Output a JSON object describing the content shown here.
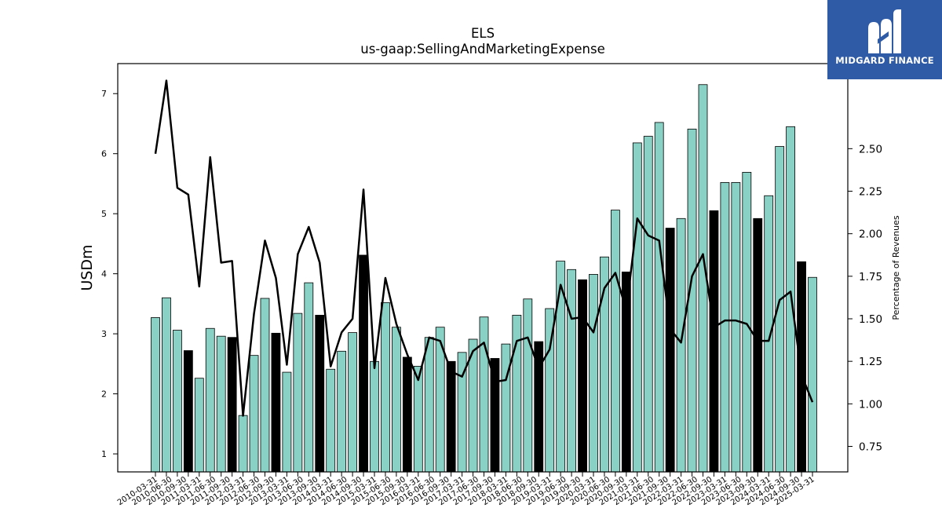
{
  "chart_data": {
    "type": "bar",
    "title": "ELS",
    "subtitle": "us-gaap:SellingAndMarketingExpense",
    "ylabel": "USDm",
    "y2label": "Percentage of Revenues",
    "ylim": [
      0.7,
      7.5
    ],
    "y2lim": [
      0.6,
      3.0
    ],
    "yticks": [
      1,
      2,
      3,
      4,
      5,
      6,
      7
    ],
    "y2ticks": [
      "0.75",
      "1.00",
      "1.25",
      "1.50",
      "1.75",
      "2.00",
      "2.25",
      "2.50"
    ],
    "grid": false,
    "categories": [
      "2010-03-31",
      "2010-06-30",
      "2010-09-30",
      "2010-12-31",
      "2011-03-31",
      "2011-06-30",
      "2011-09-30",
      "2011-12-31",
      "2012-03-31",
      "2012-06-30",
      "2012-09-30",
      "2012-12-31",
      "2013-03-31",
      "2013-06-30",
      "2013-09-30",
      "2013-12-31",
      "2014-03-31",
      "2014-06-30",
      "2014-09-30",
      "2014-12-31",
      "2015-03-31",
      "2015-06-30",
      "2015-09-30",
      "2015-12-31",
      "2016-03-31",
      "2016-06-30",
      "2016-09-30",
      "2016-12-31",
      "2017-03-31",
      "2017-06-30",
      "2017-09-30",
      "2017-12-31",
      "2018-03-31",
      "2018-06-30",
      "2018-09-30",
      "2018-12-31",
      "2019-03-31",
      "2019-06-30",
      "2019-09-30",
      "2019-12-31",
      "2020-03-31",
      "2020-06-30",
      "2020-09-30",
      "2020-12-31",
      "2021-03-31",
      "2021-06-30",
      "2021-09-30",
      "2021-12-31",
      "2022-03-31",
      "2022-06-30",
      "2022-09-30",
      "2022-12-31",
      "2023-03-31",
      "2023-06-30",
      "2023-09-30",
      "2023-12-31",
      "2024-03-31",
      "2024-06-30",
      "2024-09-30",
      "2024-12-31",
      "2025-03-31"
    ],
    "xticklabels": [
      "2010-03-31",
      "2010-06-30",
      "2010-09-30",
      "2011-03-31",
      "2011-06-30",
      "2011-09-30",
      "2012-03-31",
      "2012-06-30",
      "2012-09-30",
      "2013-03-31",
      "2013-06-30",
      "2013-09-30",
      "2014-03-31",
      "2014-06-30",
      "2014-09-30",
      "2015-03-31",
      "2015-06-30",
      "2015-09-30",
      "2016-03-31",
      "2016-06-30",
      "2016-09-30",
      "2017-03-31",
      "2017-06-30",
      "2017-09-30",
      "2018-03-31",
      "2018-06-30",
      "2018-09-30",
      "2019-03-31",
      "2019-06-30",
      "2019-09-30",
      "2020-03-31",
      "2020-06-30",
      "2020-09-30",
      "2021-03-31",
      "2021-06-30",
      "2021-09-30",
      "2022-03-31",
      "2022-06-30",
      "2022-09-30",
      "2023-03-31",
      "2023-06-30",
      "2023-09-30",
      "2024-03-31",
      "2024-06-30",
      "2024-09-30",
      "2025-03-31"
    ],
    "bar_values": [
      3.27,
      3.6,
      3.06,
      2.72,
      2.26,
      3.09,
      2.96,
      2.94,
      1.64,
      2.64,
      3.59,
      3.01,
      2.36,
      3.34,
      3.85,
      3.31,
      2.41,
      2.71,
      3.02,
      4.31,
      2.54,
      3.52,
      3.11,
      2.61,
      2.46,
      2.94,
      3.11,
      2.54,
      2.69,
      2.91,
      3.28,
      2.59,
      2.83,
      3.31,
      3.58,
      2.87,
      3.42,
      4.21,
      4.07,
      3.9,
      3.99,
      4.28,
      5.06,
      4.03,
      6.18,
      6.29,
      6.52,
      4.76,
      4.92,
      6.41,
      7.15,
      5.05,
      5.52,
      5.52,
      5.69,
      4.92,
      5.3,
      6.12,
      6.45,
      4.2,
      3.94
    ],
    "bar_highlight": [
      false,
      false,
      false,
      true,
      false,
      false,
      false,
      true,
      false,
      false,
      false,
      true,
      false,
      false,
      false,
      true,
      false,
      false,
      false,
      true,
      false,
      false,
      false,
      true,
      false,
      false,
      false,
      true,
      false,
      false,
      false,
      true,
      false,
      false,
      false,
      true,
      false,
      false,
      false,
      true,
      false,
      false,
      false,
      true,
      false,
      false,
      false,
      true,
      false,
      false,
      false,
      true,
      false,
      false,
      false,
      true,
      false,
      false,
      false,
      true,
      false
    ],
    "series": [
      {
        "values": [
          2.47,
          2.9,
          2.27,
          2.23,
          1.69,
          2.45,
          1.83,
          1.84,
          0.93,
          1.53,
          1.96,
          1.74,
          1.23,
          1.88,
          2.04,
          1.83,
          1.22,
          1.42,
          1.5,
          2.26,
          1.21,
          1.74,
          1.47,
          1.29,
          1.14,
          1.39,
          1.37,
          1.19,
          1.16,
          1.31,
          1.36,
          1.13,
          1.14,
          1.37,
          1.39,
          1.21,
          1.32,
          1.7,
          1.5,
          1.51,
          1.42,
          1.68,
          1.77,
          1.55,
          2.09,
          1.99,
          1.96,
          1.44,
          1.36,
          1.75,
          1.88,
          1.45,
          1.49,
          1.49,
          1.47,
          1.37,
          1.37,
          1.61,
          1.66,
          1.17,
          1.01
        ]
      }
    ],
    "colors": {
      "bar": "#88d1c4",
      "bar_highlight": "#000000",
      "line": "#000000",
      "edge": "#000000"
    }
  },
  "logo": {
    "text": "MIDGARD FINANCE"
  }
}
